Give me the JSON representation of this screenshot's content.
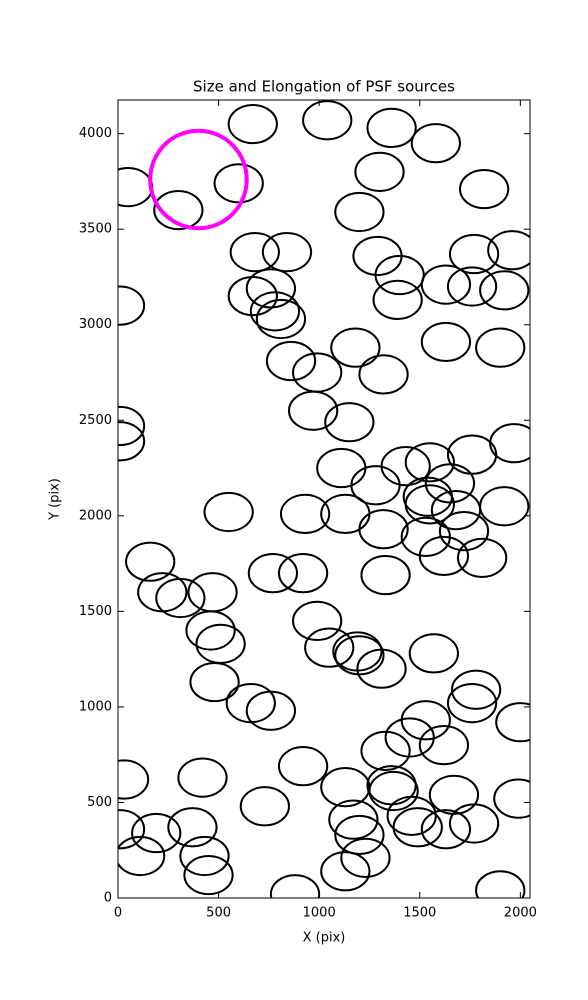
{
  "chart_data": {
    "type": "ellipse",
    "title": "Size and Elongation of PSF sources",
    "x_label": "X (pix)",
    "y_label": "Y (pix)",
    "xlim": [
      0,
      2048
    ],
    "ylim": [
      0,
      4176
    ],
    "xticks": [
      0,
      500,
      1000,
      1500,
      2000
    ],
    "yticks": [
      0,
      500,
      1000,
      1500,
      2000,
      2500,
      3000,
      3500,
      4000
    ],
    "color": "#000000",
    "ellipse_width": 240,
    "ellipse_height": 200,
    "x": [
      670,
      1040,
      1360,
      1580,
      50,
      300,
      600,
      1300,
      1820,
      1200,
      680,
      840,
      1290,
      1400,
      1630,
      1770,
      1960,
      760,
      670,
      780,
      810,
      1390,
      1760,
      1920,
      10,
      1180,
      1630,
      1900,
      860,
      990,
      1320,
      970,
      1150,
      10,
      10,
      1970,
      1760,
      1110,
      1430,
      1550,
      1280,
      1650,
      1540,
      1550,
      1680,
      1920,
      550,
      930,
      1130,
      1320,
      1720,
      1530,
      1620,
      1810,
      770,
      920,
      1330,
      160,
      220,
      310,
      470,
      460,
      510,
      990,
      1050,
      1190,
      1200,
      1310,
      1570,
      480,
      660,
      760,
      1780,
      1760,
      2000,
      1530,
      1450,
      1330,
      1620,
      30,
      420,
      920,
      1130,
      730,
      1360,
      1370,
      1670,
      1460,
      1990,
      10,
      110,
      370,
      190,
      430,
      450,
      1170,
      1200,
      1490,
      1630,
      1770,
      1230,
      1130,
      880,
      1900
    ],
    "values": [
      4050,
      4070,
      4030,
      3950,
      3720,
      3600,
      3740,
      3800,
      3710,
      3590,
      3380,
      3380,
      3360,
      3260,
      3210,
      3370,
      3390,
      3190,
      3150,
      3070,
      3030,
      3130,
      3200,
      3180,
      3100,
      2880,
      2910,
      2880,
      2810,
      2750,
      2740,
      2550,
      2490,
      2470,
      2390,
      2380,
      2320,
      2250,
      2260,
      2280,
      2160,
      2170,
      2100,
      2060,
      2030,
      2050,
      2020,
      2010,
      2010,
      1930,
      1920,
      1890,
      1790,
      1780,
      1700,
      1700,
      1690,
      1760,
      1600,
      1570,
      1600,
      1400,
      1330,
      1450,
      1310,
      1290,
      1270,
      1200,
      1280,
      1130,
      1020,
      980,
      1090,
      1020,
      920,
      930,
      840,
      770,
      800,
      620,
      630,
      690,
      580,
      480,
      590,
      560,
      540,
      430,
      520,
      360,
      220,
      370,
      340,
      220,
      120,
      410,
      330,
      370,
      360,
      390,
      210,
      140,
      20,
      40
    ],
    "highlight": {
      "x": 400,
      "y": 3760,
      "width": 480,
      "height": 510,
      "color": "#ff00ff"
    }
  }
}
